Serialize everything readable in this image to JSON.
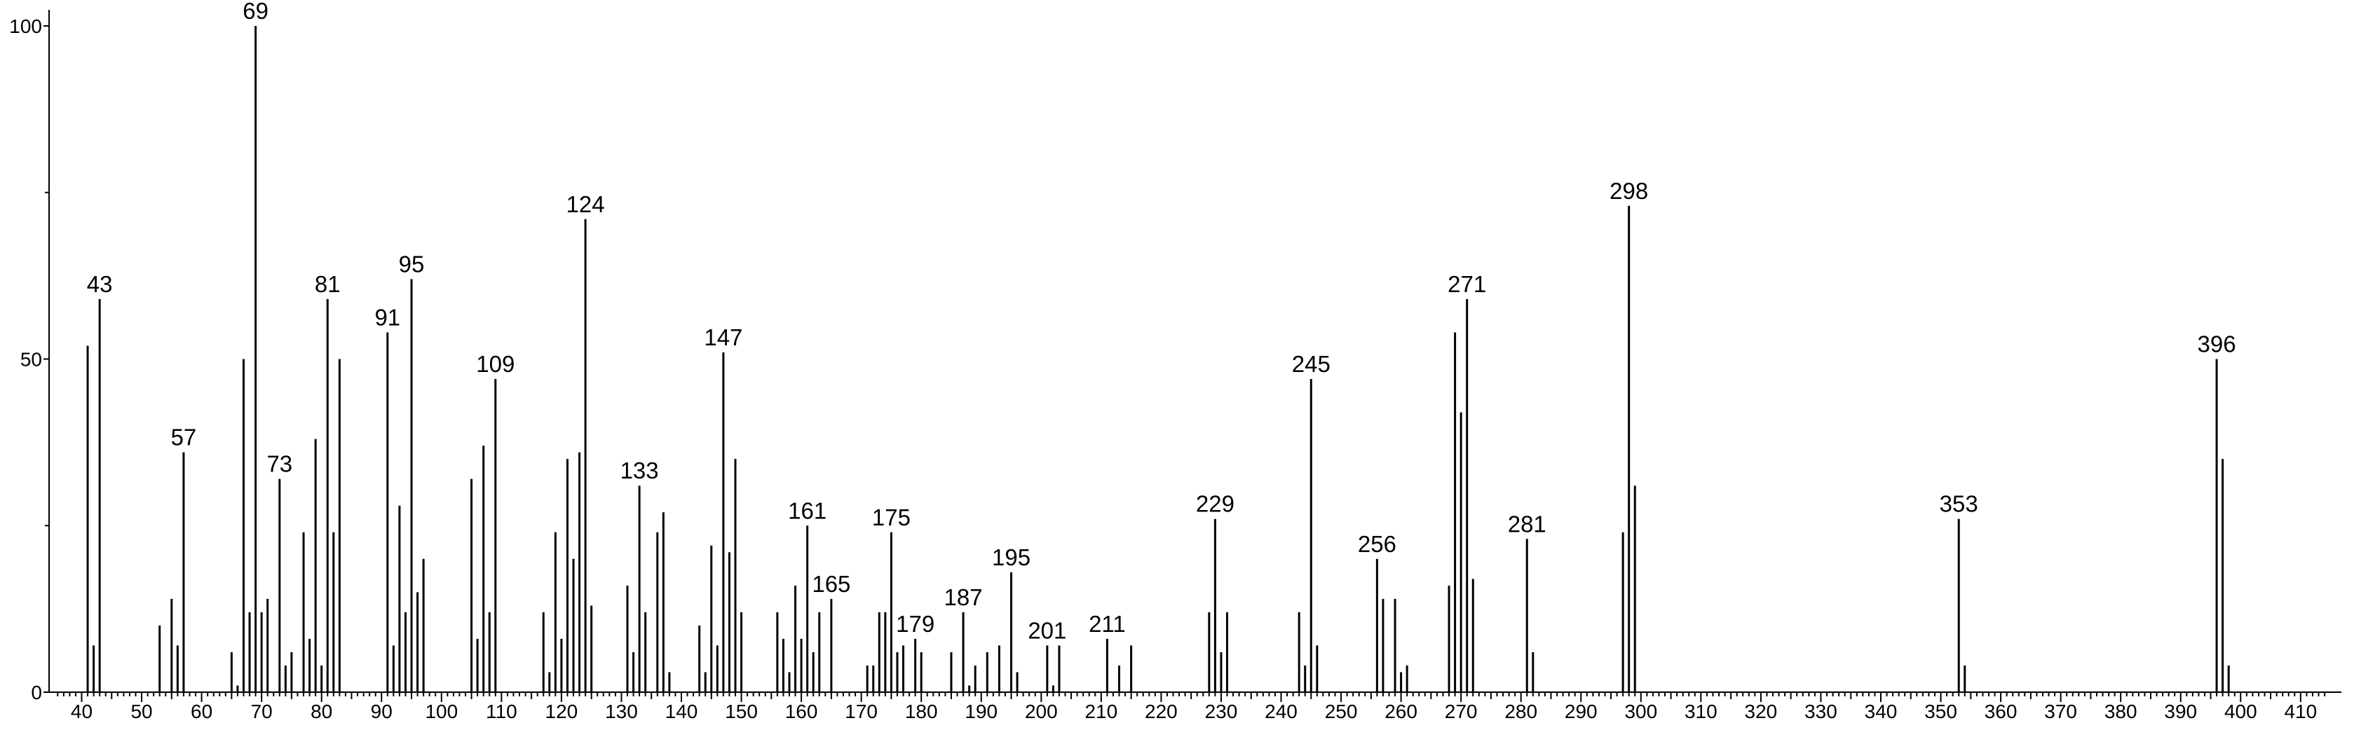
{
  "chart_data": {
    "type": "bar",
    "title": "",
    "xlabel": "",
    "ylabel": "",
    "xlim": [
      36,
      414
    ],
    "ylim": [
      0,
      100
    ],
    "x_ticks_major": [
      40,
      50,
      60,
      70,
      80,
      90,
      100,
      110,
      120,
      130,
      140,
      150,
      160,
      170,
      180,
      190,
      200,
      210,
      220,
      230,
      240,
      250,
      260,
      270,
      280,
      290,
      300,
      310,
      320,
      330,
      340,
      350,
      360,
      370,
      380,
      390,
      400,
      410
    ],
    "y_ticks_labeled": [
      0,
      50,
      100
    ],
    "y_ticks_unlabeled": [
      25,
      75
    ],
    "grid": false,
    "peaks": [
      {
        "x": 41,
        "y": 52
      },
      {
        "x": 42,
        "y": 7
      },
      {
        "x": 43,
        "y": 59
      },
      {
        "x": 53,
        "y": 10
      },
      {
        "x": 55,
        "y": 14
      },
      {
        "x": 56,
        "y": 7
      },
      {
        "x": 57,
        "y": 36
      },
      {
        "x": 65,
        "y": 6
      },
      {
        "x": 66,
        "y": 1
      },
      {
        "x": 67,
        "y": 50
      },
      {
        "x": 68,
        "y": 12
      },
      {
        "x": 69,
        "y": 100
      },
      {
        "x": 70,
        "y": 12
      },
      {
        "x": 71,
        "y": 14
      },
      {
        "x": 73,
        "y": 32
      },
      {
        "x": 74,
        "y": 4
      },
      {
        "x": 75,
        "y": 6
      },
      {
        "x": 77,
        "y": 24
      },
      {
        "x": 78,
        "y": 8
      },
      {
        "x": 79,
        "y": 38
      },
      {
        "x": 80,
        "y": 4
      },
      {
        "x": 81,
        "y": 59
      },
      {
        "x": 82,
        "y": 24
      },
      {
        "x": 83,
        "y": 50
      },
      {
        "x": 91,
        "y": 54
      },
      {
        "x": 92,
        "y": 7
      },
      {
        "x": 93,
        "y": 28
      },
      {
        "x": 94,
        "y": 12
      },
      {
        "x": 95,
        "y": 62
      },
      {
        "x": 96,
        "y": 15
      },
      {
        "x": 97,
        "y": 20
      },
      {
        "x": 105,
        "y": 32
      },
      {
        "x": 106,
        "y": 8
      },
      {
        "x": 107,
        "y": 37
      },
      {
        "x": 108,
        "y": 12
      },
      {
        "x": 109,
        "y": 47
      },
      {
        "x": 117,
        "y": 12
      },
      {
        "x": 118,
        "y": 3
      },
      {
        "x": 119,
        "y": 24
      },
      {
        "x": 120,
        "y": 8
      },
      {
        "x": 121,
        "y": 35
      },
      {
        "x": 122,
        "y": 20
      },
      {
        "x": 123,
        "y": 36
      },
      {
        "x": 124,
        "y": 71
      },
      {
        "x": 125,
        "y": 13
      },
      {
        "x": 131,
        "y": 16
      },
      {
        "x": 132,
        "y": 6
      },
      {
        "x": 133,
        "y": 31
      },
      {
        "x": 134,
        "y": 12
      },
      {
        "x": 136,
        "y": 24
      },
      {
        "x": 137,
        "y": 27
      },
      {
        "x": 138,
        "y": 3
      },
      {
        "x": 143,
        "y": 10
      },
      {
        "x": 144,
        "y": 3
      },
      {
        "x": 145,
        "y": 22
      },
      {
        "x": 146,
        "y": 7
      },
      {
        "x": 147,
        "y": 51
      },
      {
        "x": 148,
        "y": 21
      },
      {
        "x": 149,
        "y": 35
      },
      {
        "x": 150,
        "y": 12
      },
      {
        "x": 156,
        "y": 12
      },
      {
        "x": 157,
        "y": 8
      },
      {
        "x": 158,
        "y": 3
      },
      {
        "x": 159,
        "y": 16
      },
      {
        "x": 160,
        "y": 8
      },
      {
        "x": 161,
        "y": 25
      },
      {
        "x": 162,
        "y": 6
      },
      {
        "x": 163,
        "y": 12
      },
      {
        "x": 165,
        "y": 14
      },
      {
        "x": 171,
        "y": 4
      },
      {
        "x": 172,
        "y": 4
      },
      {
        "x": 173,
        "y": 12
      },
      {
        "x": 174,
        "y": 12
      },
      {
        "x": 175,
        "y": 24
      },
      {
        "x": 176,
        "y": 6
      },
      {
        "x": 177,
        "y": 7
      },
      {
        "x": 179,
        "y": 8
      },
      {
        "x": 180,
        "y": 6
      },
      {
        "x": 185,
        "y": 6
      },
      {
        "x": 187,
        "y": 12
      },
      {
        "x": 188,
        "y": 1
      },
      {
        "x": 189,
        "y": 4
      },
      {
        "x": 191,
        "y": 6
      },
      {
        "x": 193,
        "y": 7
      },
      {
        "x": 195,
        "y": 18
      },
      {
        "x": 196,
        "y": 3
      },
      {
        "x": 201,
        "y": 7
      },
      {
        "x": 202,
        "y": 1
      },
      {
        "x": 203,
        "y": 7
      },
      {
        "x": 211,
        "y": 8
      },
      {
        "x": 213,
        "y": 4
      },
      {
        "x": 215,
        "y": 7
      },
      {
        "x": 228,
        "y": 12
      },
      {
        "x": 229,
        "y": 26
      },
      {
        "x": 230,
        "y": 6
      },
      {
        "x": 231,
        "y": 12
      },
      {
        "x": 243,
        "y": 12
      },
      {
        "x": 244,
        "y": 4
      },
      {
        "x": 245,
        "y": 47
      },
      {
        "x": 246,
        "y": 7
      },
      {
        "x": 256,
        "y": 20
      },
      {
        "x": 257,
        "y": 14
      },
      {
        "x": 259,
        "y": 14
      },
      {
        "x": 260,
        "y": 3
      },
      {
        "x": 261,
        "y": 4
      },
      {
        "x": 268,
        "y": 16
      },
      {
        "x": 269,
        "y": 54
      },
      {
        "x": 270,
        "y": 42
      },
      {
        "x": 271,
        "y": 59
      },
      {
        "x": 272,
        "y": 17
      },
      {
        "x": 281,
        "y": 23
      },
      {
        "x": 282,
        "y": 6
      },
      {
        "x": 297,
        "y": 24
      },
      {
        "x": 298,
        "y": 73
      },
      {
        "x": 299,
        "y": 31
      },
      {
        "x": 353,
        "y": 26
      },
      {
        "x": 354,
        "y": 4
      },
      {
        "x": 396,
        "y": 50
      },
      {
        "x": 397,
        "y": 35
      },
      {
        "x": 398,
        "y": 4
      }
    ],
    "peak_labels": [
      {
        "x": 43,
        "text": "43"
      },
      {
        "x": 57,
        "text": "57"
      },
      {
        "x": 69,
        "text": "69"
      },
      {
        "x": 73,
        "text": "73"
      },
      {
        "x": 81,
        "text": "81"
      },
      {
        "x": 91,
        "text": "91"
      },
      {
        "x": 95,
        "text": "95"
      },
      {
        "x": 109,
        "text": "109"
      },
      {
        "x": 124,
        "text": "124"
      },
      {
        "x": 133,
        "text": "133"
      },
      {
        "x": 147,
        "text": "147"
      },
      {
        "x": 161,
        "text": "161"
      },
      {
        "x": 165,
        "text": "165"
      },
      {
        "x": 175,
        "text": "175"
      },
      {
        "x": 179,
        "text": "179"
      },
      {
        "x": 187,
        "text": "187"
      },
      {
        "x": 195,
        "text": "195"
      },
      {
        "x": 201,
        "text": "201"
      },
      {
        "x": 211,
        "text": "211"
      },
      {
        "x": 229,
        "text": "229"
      },
      {
        "x": 245,
        "text": "245"
      },
      {
        "x": 256,
        "text": "256"
      },
      {
        "x": 271,
        "text": "271"
      },
      {
        "x": 281,
        "text": "281"
      },
      {
        "x": 298,
        "text": "298"
      },
      {
        "x": 353,
        "text": "353"
      },
      {
        "x": 396,
        "text": "396"
      }
    ]
  }
}
